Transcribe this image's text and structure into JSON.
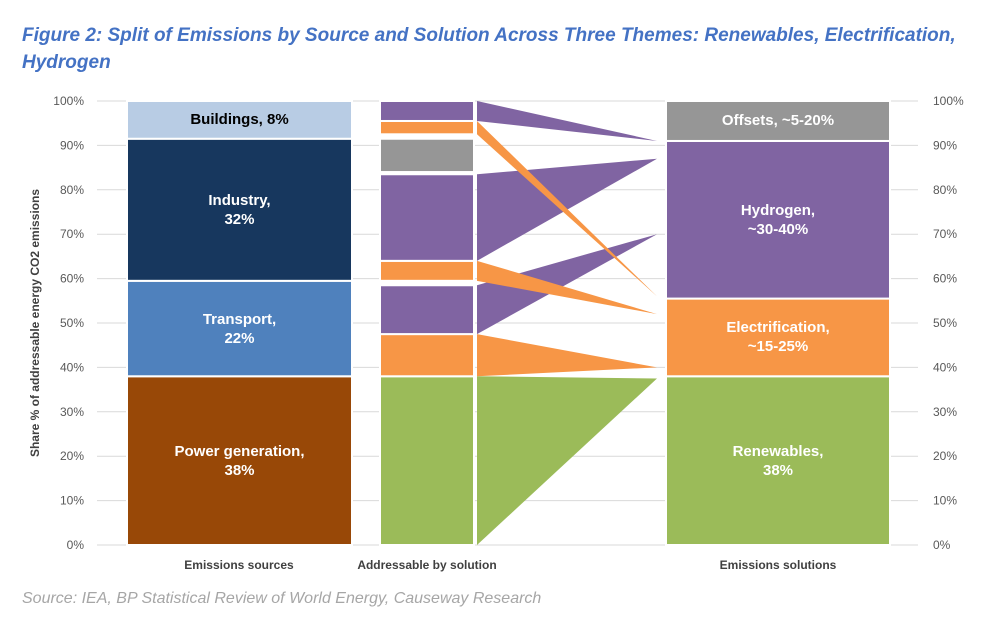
{
  "title": "Figure 2: Split of Emissions by Source and Solution Across Three Themes: Renewables, Electrification, Hydrogen",
  "source": "Source: IEA, BP Statistical Review of World Energy, Causeway Research",
  "chart_data": {
    "type": "bar",
    "subtype": "stacked-bar-with-flow-wedges",
    "ylabel": "Share % of addressable energy CO2 emissions",
    "ylim": [
      0,
      100
    ],
    "yticks": [
      "0%",
      "10%",
      "20%",
      "30%",
      "40%",
      "50%",
      "60%",
      "70%",
      "80%",
      "90%",
      "100%"
    ],
    "y_axis_right": true,
    "grid": true,
    "categories": [
      "Emissions sources",
      "Addressable by solution",
      "Emissions solutions"
    ],
    "sources": [
      {
        "label": "Power generation,\n38%",
        "from": 0,
        "to": 38,
        "color": "#984807",
        "text_color": "#ffffff"
      },
      {
        "label": "Transport,\n22%",
        "from": 38,
        "to": 59.5,
        "color": "#4f81bd",
        "text_color": "#ffffff"
      },
      {
        "label": "Industry,\n32%",
        "from": 59.5,
        "to": 91.5,
        "color": "#17375e",
        "text_color": "#ffffff"
      },
      {
        "label": "Buildings, 8%",
        "from": 91.5,
        "to": 100,
        "color": "#b8cce4",
        "text_color": "#000000"
      }
    ],
    "addressable": [
      {
        "solution": "Renewables",
        "from": 0,
        "to": 38,
        "color": "#9bbb59"
      },
      {
        "solution": "Electrification",
        "from": 38,
        "to": 47.5,
        "color": "#f79646"
      },
      {
        "solution": "Hydrogen",
        "from": 47.5,
        "to": 58.5,
        "color": "#8064a2"
      },
      {
        "solution": "Electrification",
        "from": 59.5,
        "to": 64,
        "color": "#f79646"
      },
      {
        "solution": "Hydrogen",
        "from": 64,
        "to": 83.5,
        "color": "#8064a2"
      },
      {
        "solution": "Offsets",
        "from": 84,
        "to": 91.5,
        "color": "#969696"
      },
      {
        "solution": "Electrification",
        "from": 92.5,
        "to": 95.5,
        "color": "#f79646"
      },
      {
        "solution": "Hydrogen",
        "from": 95.5,
        "to": 100,
        "color": "#8064a2"
      }
    ],
    "flows": [
      {
        "from": 0,
        "to": 38,
        "target": 37.5,
        "color": "#9bbb59"
      },
      {
        "from": 38,
        "to": 47.5,
        "target": 40,
        "color": "#f79646"
      },
      {
        "from": 47.5,
        "to": 58.5,
        "target": 70,
        "color": "#8064a2"
      },
      {
        "from": 59.5,
        "to": 64,
        "target": 52,
        "color": "#f79646"
      },
      {
        "from": 64,
        "to": 83.5,
        "target": 87,
        "color": "#8064a2"
      },
      {
        "from": 92.5,
        "to": 95.5,
        "target": 56,
        "color": "#f79646"
      },
      {
        "from": 95.5,
        "to": 100,
        "target": 91,
        "color": "#8064a2"
      }
    ],
    "solutions": [
      {
        "label": "Renewables,\n38%",
        "from": 0,
        "to": 38,
        "color": "#9bbb59",
        "text_color": "#ffffff"
      },
      {
        "label": "Electrification,\n~15-25%",
        "from": 38,
        "to": 55.5,
        "color": "#f79646",
        "text_color": "#ffffff"
      },
      {
        "label": "Hydrogen,\n~30-40%",
        "from": 55.5,
        "to": 91,
        "color": "#8064a2",
        "text_color": "#ffffff"
      },
      {
        "label": "Offsets, ~5-20%",
        "from": 91,
        "to": 100,
        "color": "#969696",
        "text_color": "#ffffff"
      }
    ]
  }
}
